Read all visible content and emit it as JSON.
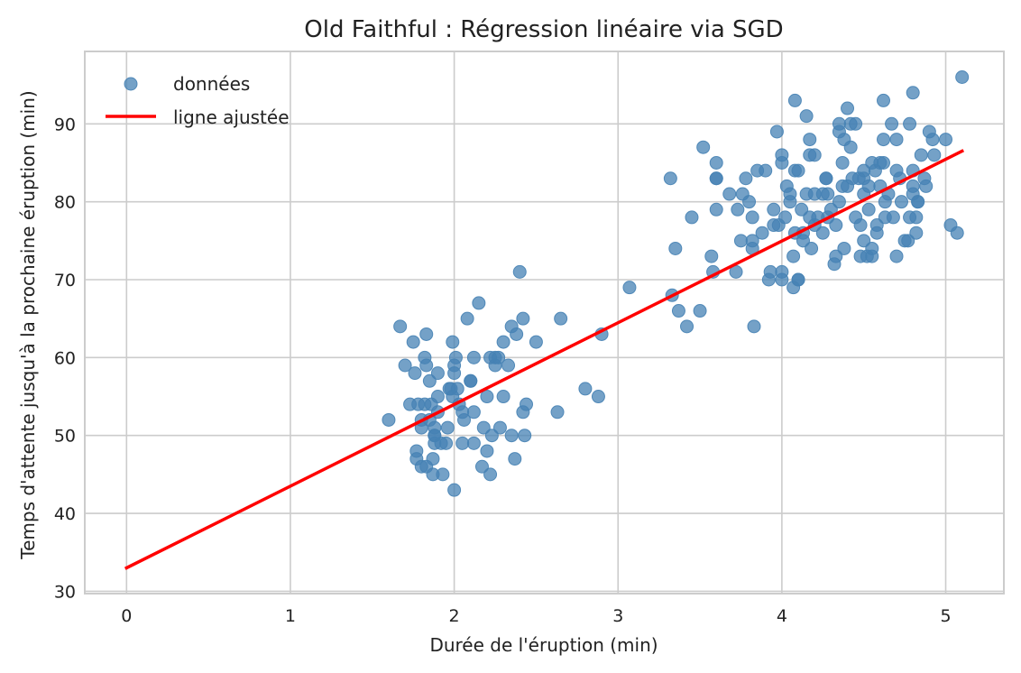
{
  "chart_data": {
    "type": "scatter",
    "title": "Old Faithful : Régression linéaire via SGD",
    "xlabel": "Durée de l'éruption (min)",
    "ylabel": "Temps d'attente jusqu'à la prochaine éruption (min)",
    "xlim": [
      -0.255,
      5.355
    ],
    "ylim": [
      29.7,
      99.3
    ],
    "xticks": [
      0,
      1,
      2,
      3,
      4,
      5
    ],
    "xtick_labels": [
      "0",
      "1",
      "2",
      "3",
      "4",
      "5"
    ],
    "yticks": [
      30,
      40,
      50,
      60,
      70,
      80,
      90
    ],
    "ytick_labels": [
      "30",
      "40",
      "50",
      "60",
      "70",
      "80",
      "90"
    ],
    "grid": true,
    "legend_position": "top-left",
    "colors": {
      "points": "#4682b4",
      "line": "#ff0000",
      "grid": "#cccccc",
      "frame": "#cccccc"
    },
    "series": [
      {
        "name": "données",
        "kind": "scatter",
        "points": [
          [
            1.6,
            52
          ],
          [
            1.67,
            64
          ],
          [
            1.7,
            59
          ],
          [
            1.73,
            54
          ],
          [
            1.75,
            62
          ],
          [
            1.76,
            58
          ],
          [
            1.77,
            48
          ],
          [
            1.77,
            47
          ],
          [
            1.78,
            54
          ],
          [
            1.8,
            46
          ],
          [
            1.8,
            52
          ],
          [
            1.8,
            51
          ],
          [
            1.82,
            54
          ],
          [
            1.82,
            60
          ],
          [
            1.83,
            59
          ],
          [
            1.83,
            63
          ],
          [
            1.83,
            46
          ],
          [
            1.85,
            57
          ],
          [
            1.85,
            52
          ],
          [
            1.86,
            54
          ],
          [
            1.87,
            47
          ],
          [
            1.87,
            45
          ],
          [
            1.88,
            51
          ],
          [
            1.88,
            49
          ],
          [
            1.88,
            50
          ],
          [
            1.88,
            50
          ],
          [
            1.9,
            55
          ],
          [
            1.9,
            58
          ],
          [
            1.9,
            53
          ],
          [
            1.92,
            49
          ],
          [
            1.93,
            45
          ],
          [
            1.95,
            49
          ],
          [
            1.96,
            51
          ],
          [
            1.97,
            56
          ],
          [
            1.98,
            56
          ],
          [
            1.99,
            62
          ],
          [
            1.99,
            55
          ],
          [
            2.0,
            59
          ],
          [
            2.0,
            58
          ],
          [
            2.0,
            43
          ],
          [
            2.01,
            60
          ],
          [
            2.02,
            56
          ],
          [
            2.03,
            54
          ],
          [
            2.05,
            49
          ],
          [
            2.05,
            53
          ],
          [
            2.06,
            52
          ],
          [
            2.08,
            65
          ],
          [
            2.1,
            57
          ],
          [
            2.1,
            57
          ],
          [
            2.12,
            60
          ],
          [
            2.12,
            53
          ],
          [
            2.12,
            49
          ],
          [
            2.15,
            67
          ],
          [
            2.17,
            46
          ],
          [
            2.18,
            51
          ],
          [
            2.2,
            48
          ],
          [
            2.2,
            55
          ],
          [
            2.22,
            45
          ],
          [
            2.22,
            60
          ],
          [
            2.23,
            50
          ],
          [
            2.25,
            59
          ],
          [
            2.25,
            60
          ],
          [
            2.27,
            60
          ],
          [
            2.28,
            51
          ],
          [
            2.3,
            55
          ],
          [
            2.3,
            62
          ],
          [
            2.33,
            59
          ],
          [
            2.35,
            50
          ],
          [
            2.35,
            64
          ],
          [
            2.37,
            47
          ],
          [
            2.38,
            63
          ],
          [
            2.4,
            71
          ],
          [
            2.42,
            65
          ],
          [
            2.42,
            53
          ],
          [
            2.43,
            50
          ],
          [
            2.44,
            54
          ],
          [
            2.5,
            62
          ],
          [
            2.63,
            53
          ],
          [
            2.65,
            65
          ],
          [
            2.8,
            56
          ],
          [
            2.88,
            55
          ],
          [
            2.9,
            63
          ],
          [
            3.07,
            69
          ],
          [
            3.32,
            83
          ],
          [
            3.33,
            68
          ],
          [
            3.35,
            74
          ],
          [
            3.37,
            66
          ],
          [
            3.42,
            64
          ],
          [
            3.45,
            78
          ],
          [
            3.5,
            66
          ],
          [
            3.52,
            87
          ],
          [
            3.57,
            73
          ],
          [
            3.58,
            71
          ],
          [
            3.6,
            83
          ],
          [
            3.6,
            83
          ],
          [
            3.6,
            85
          ],
          [
            3.6,
            79
          ],
          [
            3.68,
            81
          ],
          [
            3.72,
            71
          ],
          [
            3.73,
            79
          ],
          [
            3.75,
            75
          ],
          [
            3.76,
            81
          ],
          [
            3.78,
            83
          ],
          [
            3.8,
            80
          ],
          [
            3.82,
            78
          ],
          [
            3.82,
            75
          ],
          [
            3.82,
            74
          ],
          [
            3.83,
            64
          ],
          [
            3.85,
            84
          ],
          [
            3.88,
            76
          ],
          [
            3.9,
            84
          ],
          [
            3.92,
            70
          ],
          [
            3.93,
            71
          ],
          [
            3.95,
            79
          ],
          [
            3.95,
            77
          ],
          [
            3.97,
            89
          ],
          [
            3.98,
            77
          ],
          [
            4.0,
            85
          ],
          [
            4.0,
            86
          ],
          [
            4.0,
            71
          ],
          [
            4.0,
            70
          ],
          [
            4.02,
            78
          ],
          [
            4.03,
            82
          ],
          [
            4.05,
            81
          ],
          [
            4.05,
            80
          ],
          [
            4.07,
            73
          ],
          [
            4.07,
            69
          ],
          [
            4.08,
            93
          ],
          [
            4.08,
            84
          ],
          [
            4.08,
            76
          ],
          [
            4.1,
            84
          ],
          [
            4.1,
            70
          ],
          [
            4.1,
            70
          ],
          [
            4.12,
            79
          ],
          [
            4.13,
            76
          ],
          [
            4.13,
            75
          ],
          [
            4.15,
            91
          ],
          [
            4.15,
            81
          ],
          [
            4.17,
            86
          ],
          [
            4.17,
            88
          ],
          [
            4.17,
            78
          ],
          [
            4.18,
            74
          ],
          [
            4.2,
            81
          ],
          [
            4.2,
            86
          ],
          [
            4.2,
            77
          ],
          [
            4.22,
            78
          ],
          [
            4.25,
            81
          ],
          [
            4.25,
            76
          ],
          [
            4.27,
            83
          ],
          [
            4.27,
            83
          ],
          [
            4.28,
            78
          ],
          [
            4.28,
            81
          ],
          [
            4.3,
            79
          ],
          [
            4.32,
            72
          ],
          [
            4.33,
            73
          ],
          [
            4.33,
            77
          ],
          [
            4.35,
            89
          ],
          [
            4.35,
            90
          ],
          [
            4.35,
            80
          ],
          [
            4.37,
            85
          ],
          [
            4.37,
            82
          ],
          [
            4.38,
            74
          ],
          [
            4.38,
            88
          ],
          [
            4.4,
            92
          ],
          [
            4.4,
            82
          ],
          [
            4.42,
            87
          ],
          [
            4.42,
            90
          ],
          [
            4.43,
            83
          ],
          [
            4.45,
            78
          ],
          [
            4.45,
            90
          ],
          [
            4.47,
            83
          ],
          [
            4.48,
            73
          ],
          [
            4.48,
            77
          ],
          [
            4.5,
            84
          ],
          [
            4.5,
            81
          ],
          [
            4.5,
            75
          ],
          [
            4.5,
            83
          ],
          [
            4.52,
            73
          ],
          [
            4.53,
            82
          ],
          [
            4.53,
            79
          ],
          [
            4.55,
            73
          ],
          [
            4.55,
            74
          ],
          [
            4.55,
            85
          ],
          [
            4.57,
            84
          ],
          [
            4.58,
            77
          ],
          [
            4.58,
            76
          ],
          [
            4.6,
            82
          ],
          [
            4.6,
            85
          ],
          [
            4.62,
            88
          ],
          [
            4.62,
            85
          ],
          [
            4.62,
            93
          ],
          [
            4.63,
            78
          ],
          [
            4.63,
            80
          ],
          [
            4.65,
            81
          ],
          [
            4.67,
            90
          ],
          [
            4.68,
            78
          ],
          [
            4.7,
            84
          ],
          [
            4.7,
            73
          ],
          [
            4.7,
            88
          ],
          [
            4.72,
            83
          ],
          [
            4.73,
            80
          ],
          [
            4.75,
            75
          ],
          [
            4.77,
            75
          ],
          [
            4.78,
            78
          ],
          [
            4.78,
            90
          ],
          [
            4.8,
            94
          ],
          [
            4.8,
            84
          ],
          [
            4.8,
            82
          ],
          [
            4.8,
            81
          ],
          [
            4.82,
            76
          ],
          [
            4.82,
            78
          ],
          [
            4.83,
            80
          ],
          [
            4.83,
            80
          ],
          [
            4.85,
            86
          ],
          [
            4.87,
            83
          ],
          [
            4.88,
            82
          ],
          [
            4.9,
            89
          ],
          [
            4.92,
            88
          ],
          [
            4.93,
            86
          ],
          [
            5.0,
            88
          ],
          [
            5.03,
            77
          ],
          [
            5.07,
            76
          ],
          [
            5.1,
            96
          ]
        ]
      },
      {
        "name": "ligne ajustée",
        "kind": "line",
        "points": [
          [
            0,
            33.0
          ],
          [
            5.1,
            86.5
          ]
        ]
      }
    ]
  }
}
